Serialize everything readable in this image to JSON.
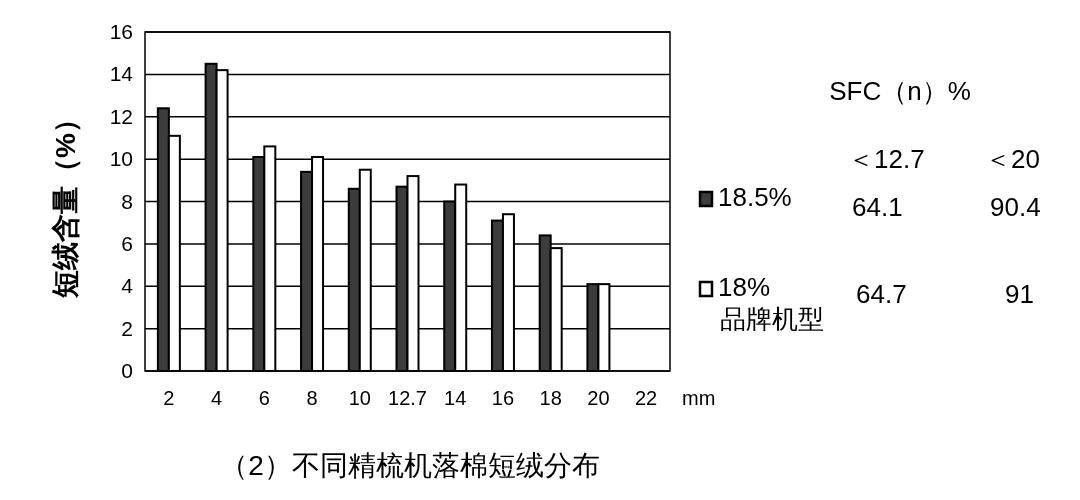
{
  "chart_data": {
    "type": "bar",
    "title": "（2）不同精梳机落棉短绒分布",
    "xlabel": "mm",
    "ylabel": "短绒含量（%）",
    "categories": [
      "2",
      "4",
      "6",
      "8",
      "10",
      "12.7",
      "14",
      "16",
      "18",
      "20",
      "22"
    ],
    "series": [
      {
        "name": "18.5%",
        "color": "#3c3c3c",
        "values": [
          12.4,
          14.5,
          10.1,
          9.4,
          8.6,
          8.7,
          8.0,
          7.1,
          6.4,
          4.1,
          null
        ]
      },
      {
        "name": "18%\n品牌机型",
        "color": "#ffffff",
        "values": [
          11.1,
          14.2,
          10.6,
          10.1,
          9.5,
          9.2,
          8.8,
          7.4,
          5.8,
          4.1,
          null
        ]
      }
    ],
    "ylim": [
      0,
      16
    ],
    "yticks": [
      0,
      2,
      4,
      6,
      8,
      10,
      12,
      14,
      16
    ],
    "grid": "y",
    "legend": "right",
    "annotations": [
      "SFC（n）%",
      "＜12.7",
      "＜20",
      "64.1",
      "90.4",
      "64.7",
      "91"
    ]
  }
}
